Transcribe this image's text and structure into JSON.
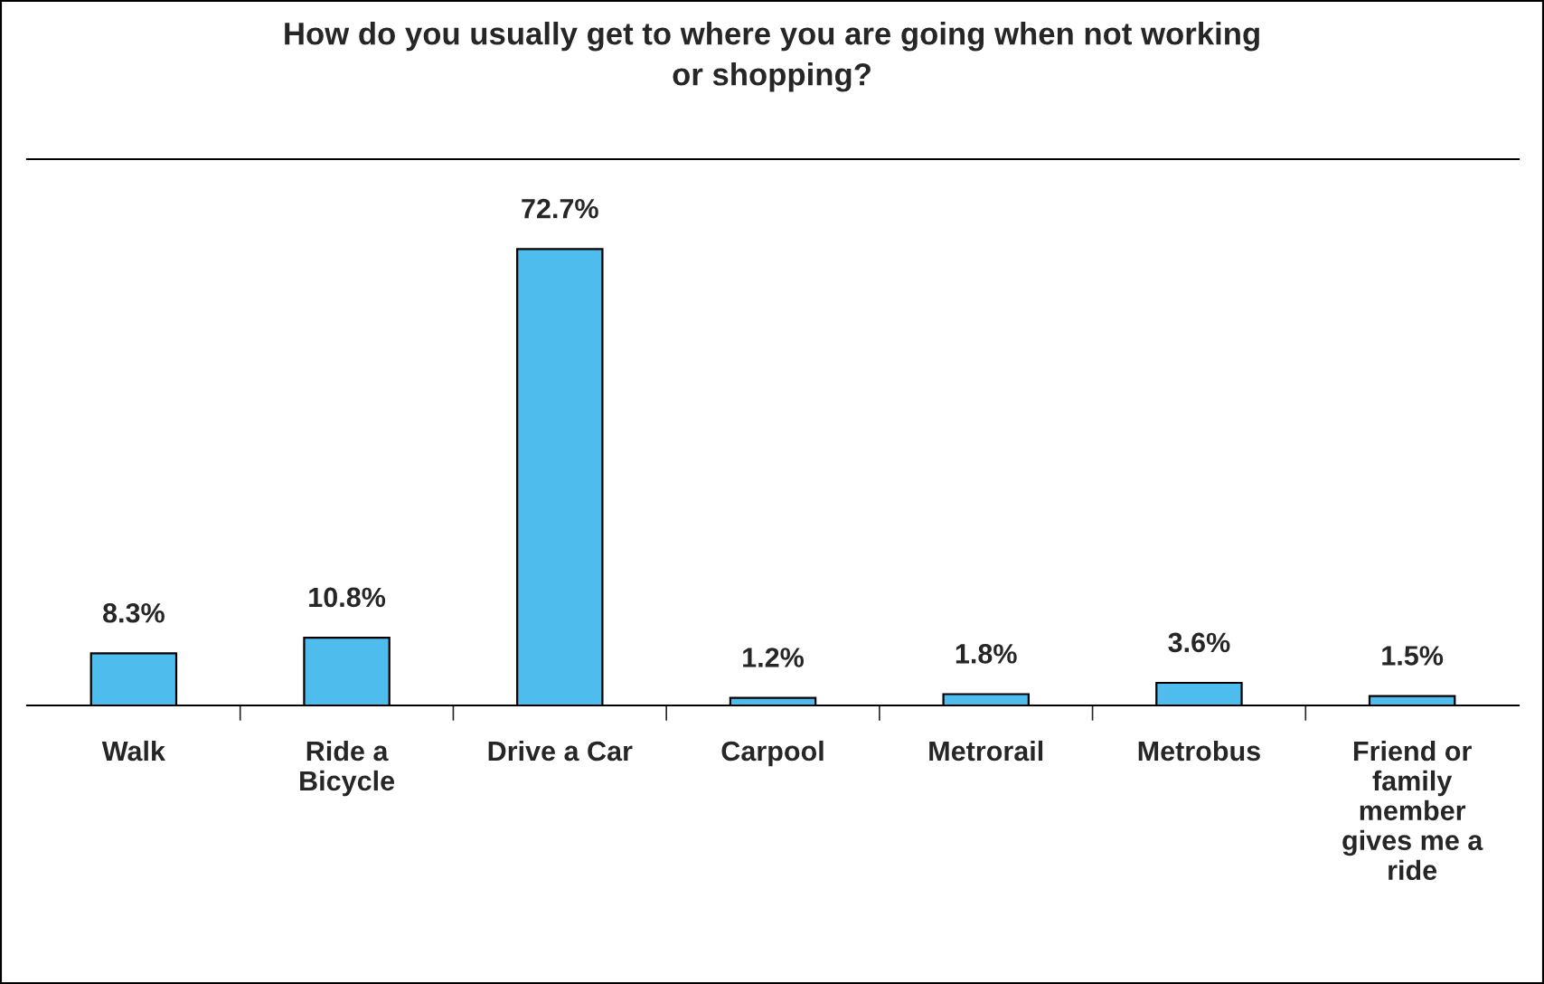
{
  "chart_data": {
    "type": "bar",
    "title": "How do you usually get to where you are going when not working or shopping?",
    "categories": [
      "Walk",
      "Ride a Bicycle",
      "Drive a Car",
      "Carpool",
      "Metrorail",
      "Metrobus",
      "Friend or family member gives me a ride"
    ],
    "values": [
      8.3,
      10.8,
      72.7,
      1.2,
      1.8,
      3.6,
      1.5
    ],
    "value_labels": [
      "8.3%",
      "10.8%",
      "72.7%",
      "1.2%",
      "1.8%",
      "3.6%",
      "1.5%"
    ],
    "color": "#4fbcee",
    "ylim": [
      0,
      87
    ],
    "grid": false,
    "legend": false
  }
}
